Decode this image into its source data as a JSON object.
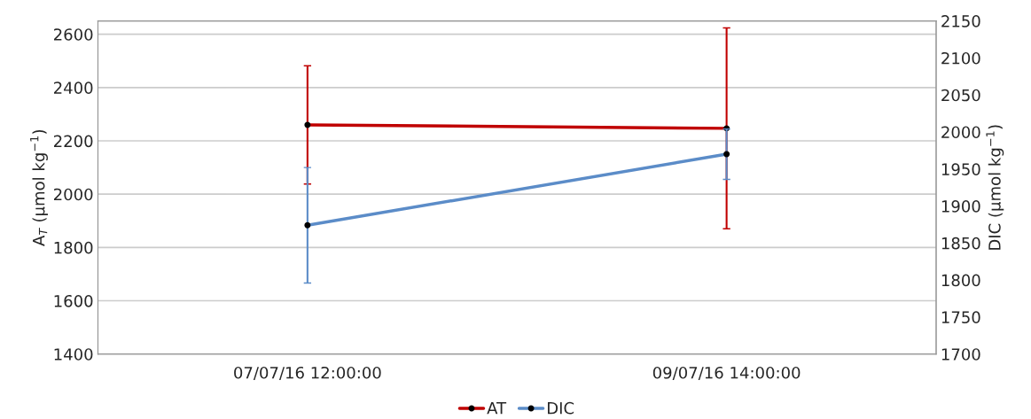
{
  "chart_data": {
    "type": "line",
    "categories": [
      "07/07/16 12:00:00",
      "09/07/16 14:00:00"
    ],
    "series": [
      {
        "name": "AT",
        "color": "#c00000",
        "values": [
          2260,
          2247
        ],
        "errors": [
          222,
          377
        ]
      },
      {
        "name": "DIC",
        "color": "#5b8cc8",
        "values": [
          1874,
          1970
        ],
        "errors": [
          78,
          34
        ],
        "axis": "y2"
      }
    ],
    "ylabel": "A$_{T}$ (µmol kg$^{−1}$)",
    "y2label": "DIC (µmol kg$^{−1}$)",
    "ylim": [
      1400,
      2650
    ],
    "yticks": [
      1400,
      1600,
      1800,
      2000,
      2200,
      2400,
      2600
    ],
    "y2lim": [
      1700,
      2150
    ],
    "y2ticks": [
      1700,
      1750,
      1800,
      1850,
      1900,
      1950,
      2000,
      2050,
      2100,
      2150
    ],
    "grid": "y",
    "legend": "bottom",
    "marker": "circle",
    "line_style": "solid"
  }
}
